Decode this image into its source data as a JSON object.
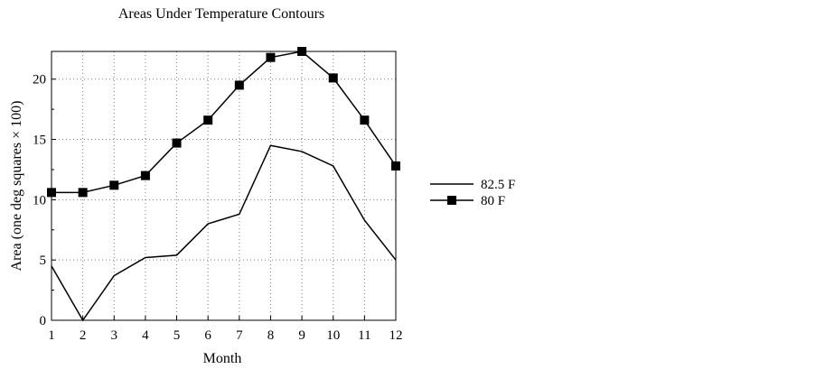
{
  "chart_data": {
    "type": "line",
    "title": "Areas Under Temperature Contours",
    "xlabel": "Month",
    "ylabel": "Area (one deg squares × 100)",
    "x": [
      1,
      2,
      3,
      4,
      5,
      6,
      7,
      8,
      9,
      10,
      11,
      12
    ],
    "xlim": [
      1,
      12
    ],
    "ylim": [
      0,
      22.3
    ],
    "yticks": [
      0,
      5,
      10,
      15,
      20
    ],
    "grid": true,
    "legend_position": "right",
    "series": [
      {
        "name": "82.5 F",
        "marker": "none",
        "color": "#000000",
        "values": [
          4.5,
          0.0,
          3.7,
          5.2,
          5.4,
          8.0,
          8.8,
          14.5,
          14.0,
          12.8,
          8.3,
          5.0
        ]
      },
      {
        "name": "80 F",
        "marker": "square",
        "color": "#000000",
        "values": [
          10.6,
          10.6,
          11.2,
          12.0,
          14.7,
          16.6,
          19.5,
          21.8,
          22.3,
          20.1,
          16.6,
          12.8
        ]
      }
    ]
  }
}
